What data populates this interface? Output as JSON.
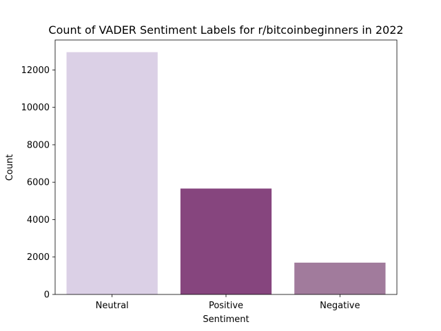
{
  "chart_data": {
    "type": "bar",
    "title": "Count of VADER Sentiment Labels for r/bitcoinbeginners in 2022",
    "xlabel": "Sentiment",
    "ylabel": "Count",
    "categories": [
      "Neutral",
      "Positive",
      "Negative"
    ],
    "values": [
      12950,
      5660,
      1700
    ],
    "colors": [
      "#dbd0e6",
      "#86457e",
      "#a17b9c"
    ],
    "ylim": [
      0,
      13600
    ],
    "yticks": [
      0,
      2000,
      4000,
      6000,
      8000,
      10000,
      12000
    ],
    "grid": false,
    "legend": "none"
  }
}
